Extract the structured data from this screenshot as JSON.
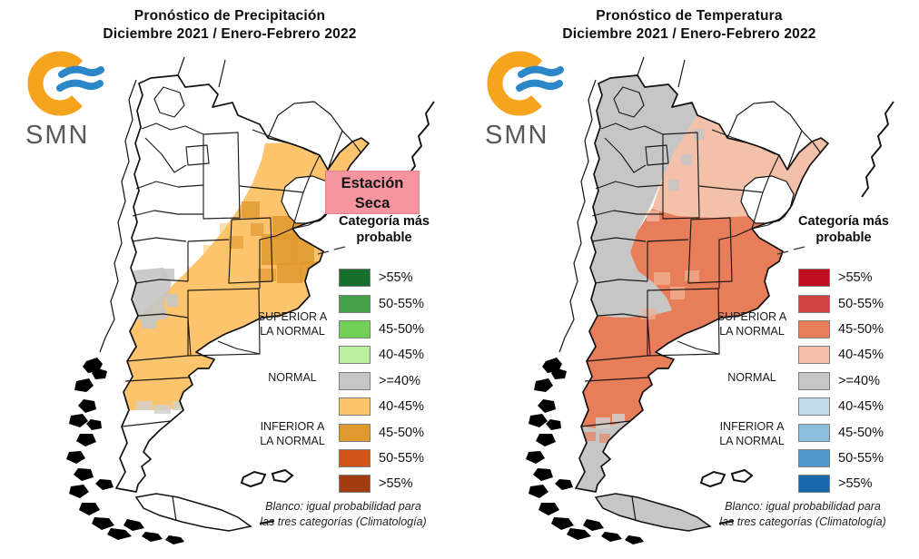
{
  "panels": [
    {
      "id": "precipitation",
      "title_line1": "Pronóstico de Precipitación",
      "title_line2": "Diciembre 2021 / Enero-Febrero 2022",
      "logo_text": "SMN",
      "badge": {
        "line1": "Estación",
        "line2": "Seca",
        "bg": "#f5959f",
        "border": "#e2808d"
      },
      "legend": {
        "title_line1": "Categoría más",
        "title_line2": "probable",
        "groups": [
          {
            "line1": "SUPERIOR A",
            "line2": "LA NORMAL"
          },
          {
            "line1": "NORMAL",
            "line2": ""
          },
          {
            "line1": "INFERIOR A",
            "line2": "LA NORMAL"
          }
        ],
        "rows": [
          {
            "label": ">55%",
            "color": "#176f2c"
          },
          {
            "label": "50-55%",
            "color": "#45a247"
          },
          {
            "label": "45-50%",
            "color": "#70d155"
          },
          {
            "label": "40-45%",
            "color": "#bbf0a0"
          },
          {
            "label": ">=40%",
            "color": "#c6c6c6"
          },
          {
            "label": "40-45%",
            "color": "#fcc46c"
          },
          {
            "label": "45-50%",
            "color": "#e0992f"
          },
          {
            "label": "50-55%",
            "color": "#ce5418"
          },
          {
            "label": ">55%",
            "color": "#a23d10"
          }
        ]
      },
      "footnote_line1": "Blanco: igual probabilidad para",
      "footnote_line2": "las tres categorías (Climatología)"
    },
    {
      "id": "temperature",
      "title_line1": "Pronóstico de Temperatura",
      "title_line2": "Diciembre 2021 / Enero-Febrero 2022",
      "logo_text": "SMN",
      "legend": {
        "title_line1": "Categoría más",
        "title_line2": "probable",
        "groups": [
          {
            "line1": "SUPERIOR A",
            "line2": "LA NORMAL"
          },
          {
            "line1": "NORMAL",
            "line2": ""
          },
          {
            "line1": "INFERIOR A",
            "line2": "LA NORMAL"
          }
        ],
        "rows": [
          {
            "label": ">55%",
            "color": "#c10d20"
          },
          {
            "label": "50-55%",
            "color": "#d24141"
          },
          {
            "label": "45-50%",
            "color": "#e87d5a"
          },
          {
            "label": "40-45%",
            "color": "#f3c1a9"
          },
          {
            "label": ">=40%",
            "color": "#c6c6c6"
          },
          {
            "label": "40-45%",
            "color": "#c3dcec"
          },
          {
            "label": "45-50%",
            "color": "#8bbfdb"
          },
          {
            "label": "50-55%",
            "color": "#4f98c9"
          },
          {
            "label": ">55%",
            "color": "#1668aa"
          }
        ]
      },
      "footnote_line1": "Blanco: igual probabilidad para",
      "footnote_line2": "las tres categorías (Climatología)"
    }
  ],
  "map_colors": {
    "precip_below_40_45": "#fcc46c",
    "precip_below_45_50": "#e0992f",
    "normal_gray": "#c6c6c6",
    "temp_above_40_45": "#f3c1a9",
    "temp_above_45_50": "#e87d5a",
    "temp_transition_light": "#f0b092",
    "outline_black": "#111111",
    "logo_orange": "#f6a41d",
    "logo_blue": "#2b87c8"
  }
}
